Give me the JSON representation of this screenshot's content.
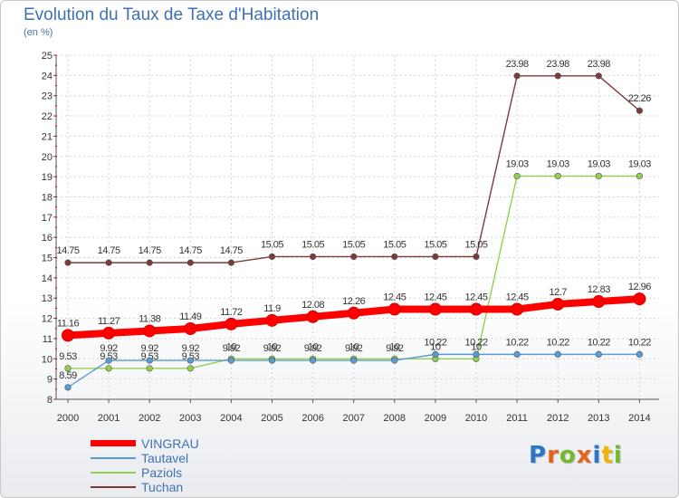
{
  "chart_data": {
    "type": "line",
    "title": "Evolution du Taux de Taxe d'Habitation",
    "subtitle": "(en %)",
    "xlabel": "",
    "ylabel": "",
    "x": [
      "2000",
      "2001",
      "2002",
      "2003",
      "2004",
      "2005",
      "2006",
      "2007",
      "2008",
      "2009",
      "2010",
      "2011",
      "2012",
      "2013",
      "2014"
    ],
    "ylim": [
      8,
      25
    ],
    "yticks": [
      "8",
      "9",
      "10",
      "11",
      "12",
      "13",
      "14",
      "15",
      "16",
      "17",
      "18",
      "19",
      "20",
      "21",
      "22",
      "23",
      "24",
      "25"
    ],
    "legend_position": "bottom-left",
    "series": [
      {
        "name": "VINGRAU",
        "color": "#ff0000",
        "values": [
          11.16,
          11.27,
          11.38,
          11.49,
          11.72,
          11.9,
          12.08,
          12.26,
          12.45,
          12.45,
          12.45,
          12.45,
          12.7,
          12.83,
          12.96
        ],
        "labels": [
          "11.16",
          "11.27",
          "11.38",
          "11.49",
          "11.72",
          "11.9",
          "12.08",
          "12.26",
          "12.45",
          "12.45",
          "12.45",
          "12.45",
          "12.7",
          "12.83",
          "12.96"
        ]
      },
      {
        "name": "Tautavel",
        "color": "#5b9bd5",
        "values": [
          8.59,
          9.92,
          9.92,
          9.92,
          9.92,
          9.92,
          9.92,
          9.92,
          9.92,
          10.22,
          10.22,
          10.22,
          10.22,
          10.22,
          10.22
        ],
        "labels": [
          "8.59",
          "9.92",
          "9.92",
          "9.92",
          "9.92",
          "9.92",
          "9.92",
          "9.92",
          "9.92",
          "10.22",
          "10.22",
          "10.22",
          "10.22",
          "10.22",
          "10.22"
        ]
      },
      {
        "name": "Paziols",
        "color": "#92d050",
        "values": [
          9.53,
          9.53,
          9.53,
          9.53,
          10,
          10,
          10,
          10,
          10,
          10,
          10,
          19.03,
          19.03,
          19.03,
          19.03
        ],
        "labels": [
          "9.53",
          "9.53",
          "9.53",
          "9.53",
          "10",
          "10",
          "10",
          "10",
          "10",
          "10",
          "10",
          "19.03",
          "19.03",
          "19.03",
          "19.03"
        ]
      },
      {
        "name": "Tuchan",
        "color": "#7b3b3b",
        "values": [
          14.75,
          14.75,
          14.75,
          14.75,
          14.75,
          15.05,
          15.05,
          15.05,
          15.05,
          15.05,
          15.05,
          23.98,
          23.98,
          23.98,
          22.26
        ],
        "labels": [
          "14.75",
          "14.75",
          "14.75",
          "14.75",
          "14.75",
          "15.05",
          "15.05",
          "15.05",
          "15.05",
          "15.05",
          "15.05",
          "23.98",
          "23.98",
          "23.98",
          "22.26"
        ]
      }
    ]
  },
  "logo": {
    "text": [
      "P",
      "r",
      "o",
      "x",
      "i",
      "t",
      "i"
    ],
    "colors": [
      "#2e75c8",
      "#e8621a",
      "#74b82e",
      "#e8621a",
      "#2e75c8",
      "#f0b400",
      "#74b82e"
    ]
  }
}
